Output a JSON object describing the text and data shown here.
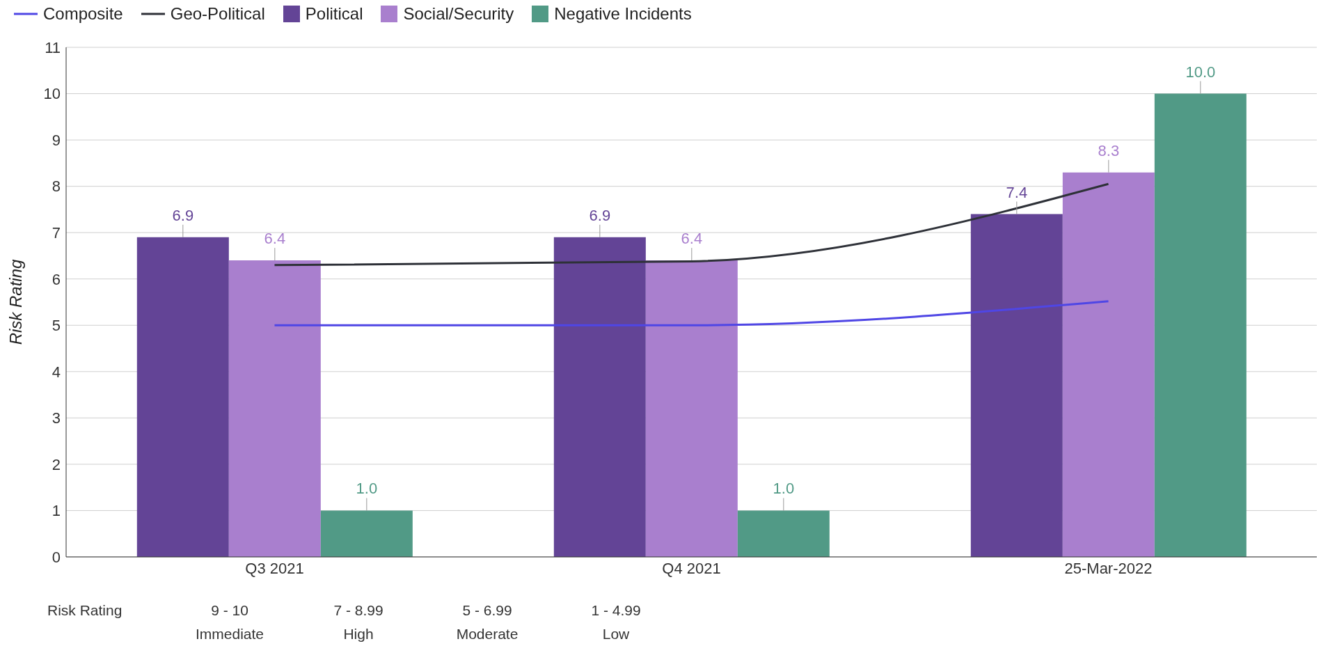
{
  "chart_data": {
    "type": "bar",
    "ylabel": "Risk Rating",
    "categories": [
      "Q3 2021",
      "Q4 2021",
      "25-Mar-2022"
    ],
    "series": [
      {
        "name": "Composite",
        "type": "line",
        "color": "#4f46e5",
        "values": [
          5.0,
          5.0,
          5.52
        ]
      },
      {
        "name": "Geo-Political",
        "type": "line",
        "color": "#2e3138",
        "values": [
          6.3,
          6.38,
          8.05
        ]
      },
      {
        "name": "Political",
        "type": "bar",
        "color": "#634496",
        "values": [
          6.9,
          6.9,
          7.4
        ],
        "value_labels": [
          "6.9",
          "6.9",
          "7.4"
        ]
      },
      {
        "name": "Social/Security",
        "type": "bar",
        "color": "#a97fce",
        "values": [
          6.4,
          6.4,
          8.3
        ],
        "value_labels": [
          "6.4",
          "6.4",
          "8.3"
        ]
      },
      {
        "name": "Negative Incidents",
        "type": "bar",
        "color": "#519a86",
        "values": [
          1.0,
          1.0,
          10.0
        ],
        "value_labels": [
          "1.0",
          "1.0",
          "10.0"
        ]
      }
    ],
    "ylim": [
      0,
      11
    ],
    "yticks": [
      0,
      1,
      2,
      3,
      4,
      5,
      6,
      7,
      8,
      9,
      10,
      11
    ],
    "grid": "y",
    "legend": "top left",
    "marker": "none",
    "annotations": [
      "Risk Rating",
      "9 - 10",
      "7 - 8.99",
      "5 - 6.99",
      "1 - 4.99",
      "Immediate",
      "High",
      "Moderate",
      "Low"
    ]
  }
}
